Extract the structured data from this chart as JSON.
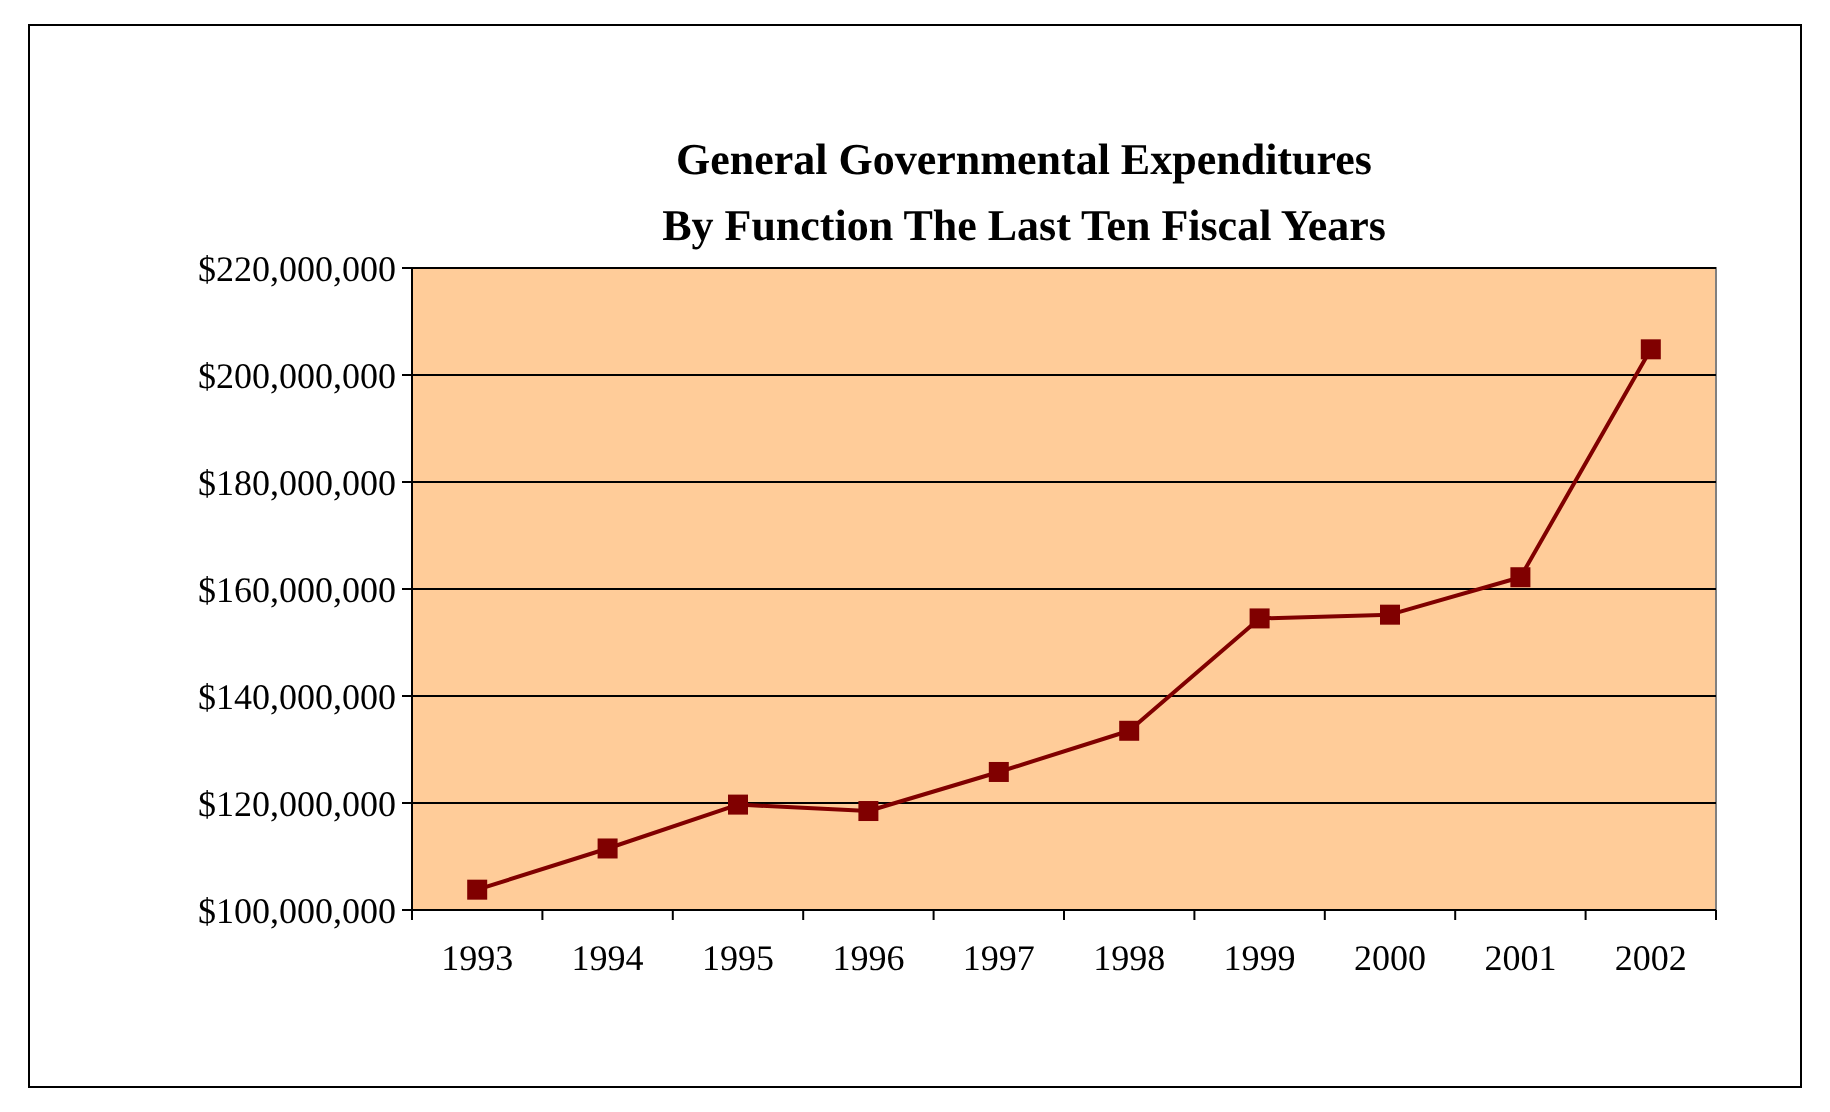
{
  "chart_data": {
    "type": "line",
    "title": "General Governmental Expenditures\nBy Function The Last Ten Fiscal Years",
    "categories": [
      "1993",
      "1994",
      "1995",
      "1996",
      "1997",
      "1998",
      "1999",
      "2000",
      "2001",
      "2002"
    ],
    "series": [
      {
        "color": "#800000",
        "values": [
          103800000,
          111500000,
          119700000,
          118500000,
          125800000,
          133500000,
          154500000,
          155200000,
          162200000,
          204800000
        ]
      }
    ],
    "ylim": [
      100000000,
      220000000
    ],
    "yticks": [
      {
        "value": 100000000,
        "label": "$100,000,000"
      },
      {
        "value": 120000000,
        "label": "$120,000,000"
      },
      {
        "value": 140000000,
        "label": "$140,000,000"
      },
      {
        "value": 160000000,
        "label": "$160,000,000"
      },
      {
        "value": 180000000,
        "label": "$180,000,000"
      },
      {
        "value": 200000000,
        "label": "$200,000,000"
      },
      {
        "value": 220000000,
        "label": "$220,000,000"
      }
    ],
    "grid": "y",
    "marker": "square"
  }
}
